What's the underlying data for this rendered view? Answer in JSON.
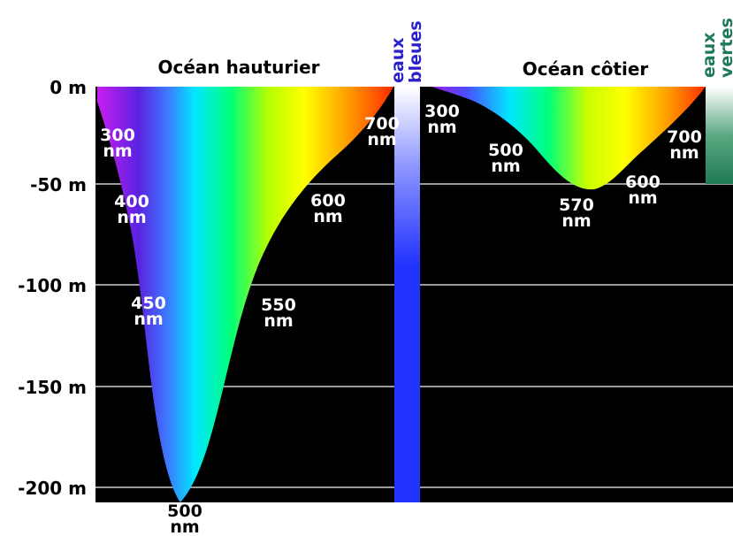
{
  "titles": {
    "open_ocean": "Océan hauturier",
    "coastal_ocean": "Océan côtier"
  },
  "water_labels": {
    "blue": [
      "eaux",
      "bleues"
    ],
    "green": [
      "eaux",
      "vertes"
    ]
  },
  "depth_axis": {
    "ticks": [
      {
        "value": 0,
        "label": "0 m"
      },
      {
        "value": -50,
        "label": "-50 m"
      },
      {
        "value": -100,
        "label": "-100 m"
      },
      {
        "value": -150,
        "label": "-150 m"
      },
      {
        "value": -200,
        "label": "-200 m"
      }
    ]
  },
  "open_ocean_wavelengths": [
    {
      "nm": "300",
      "unit": "nm",
      "depth_m": -25
    },
    {
      "nm": "400",
      "unit": "nm",
      "depth_m": -60
    },
    {
      "nm": "450",
      "unit": "nm",
      "depth_m": -110
    },
    {
      "nm": "500",
      "unit": "nm",
      "depth_m": -210
    },
    {
      "nm": "550",
      "unit": "nm",
      "depth_m": -110
    },
    {
      "nm": "600",
      "unit": "nm",
      "depth_m": -60
    },
    {
      "nm": "700",
      "unit": "nm",
      "depth_m": -20
    }
  ],
  "coastal_ocean_wavelengths": [
    {
      "nm": "300",
      "unit": "nm",
      "depth_m": -10
    },
    {
      "nm": "500",
      "unit": "nm",
      "depth_m": -35
    },
    {
      "nm": "570",
      "unit": "nm",
      "depth_m": -50
    },
    {
      "nm": "600",
      "unit": "nm",
      "depth_m": -45
    },
    {
      "nm": "700",
      "unit": "nm",
      "depth_m": -25
    }
  ],
  "colors": {
    "background": "#000000",
    "grid": "#9a9a9a",
    "blue_water": "#2233ff",
    "green_water": "#1f7a52",
    "blue_label": "#2a22c8",
    "green_label": "#1d7a58"
  }
}
